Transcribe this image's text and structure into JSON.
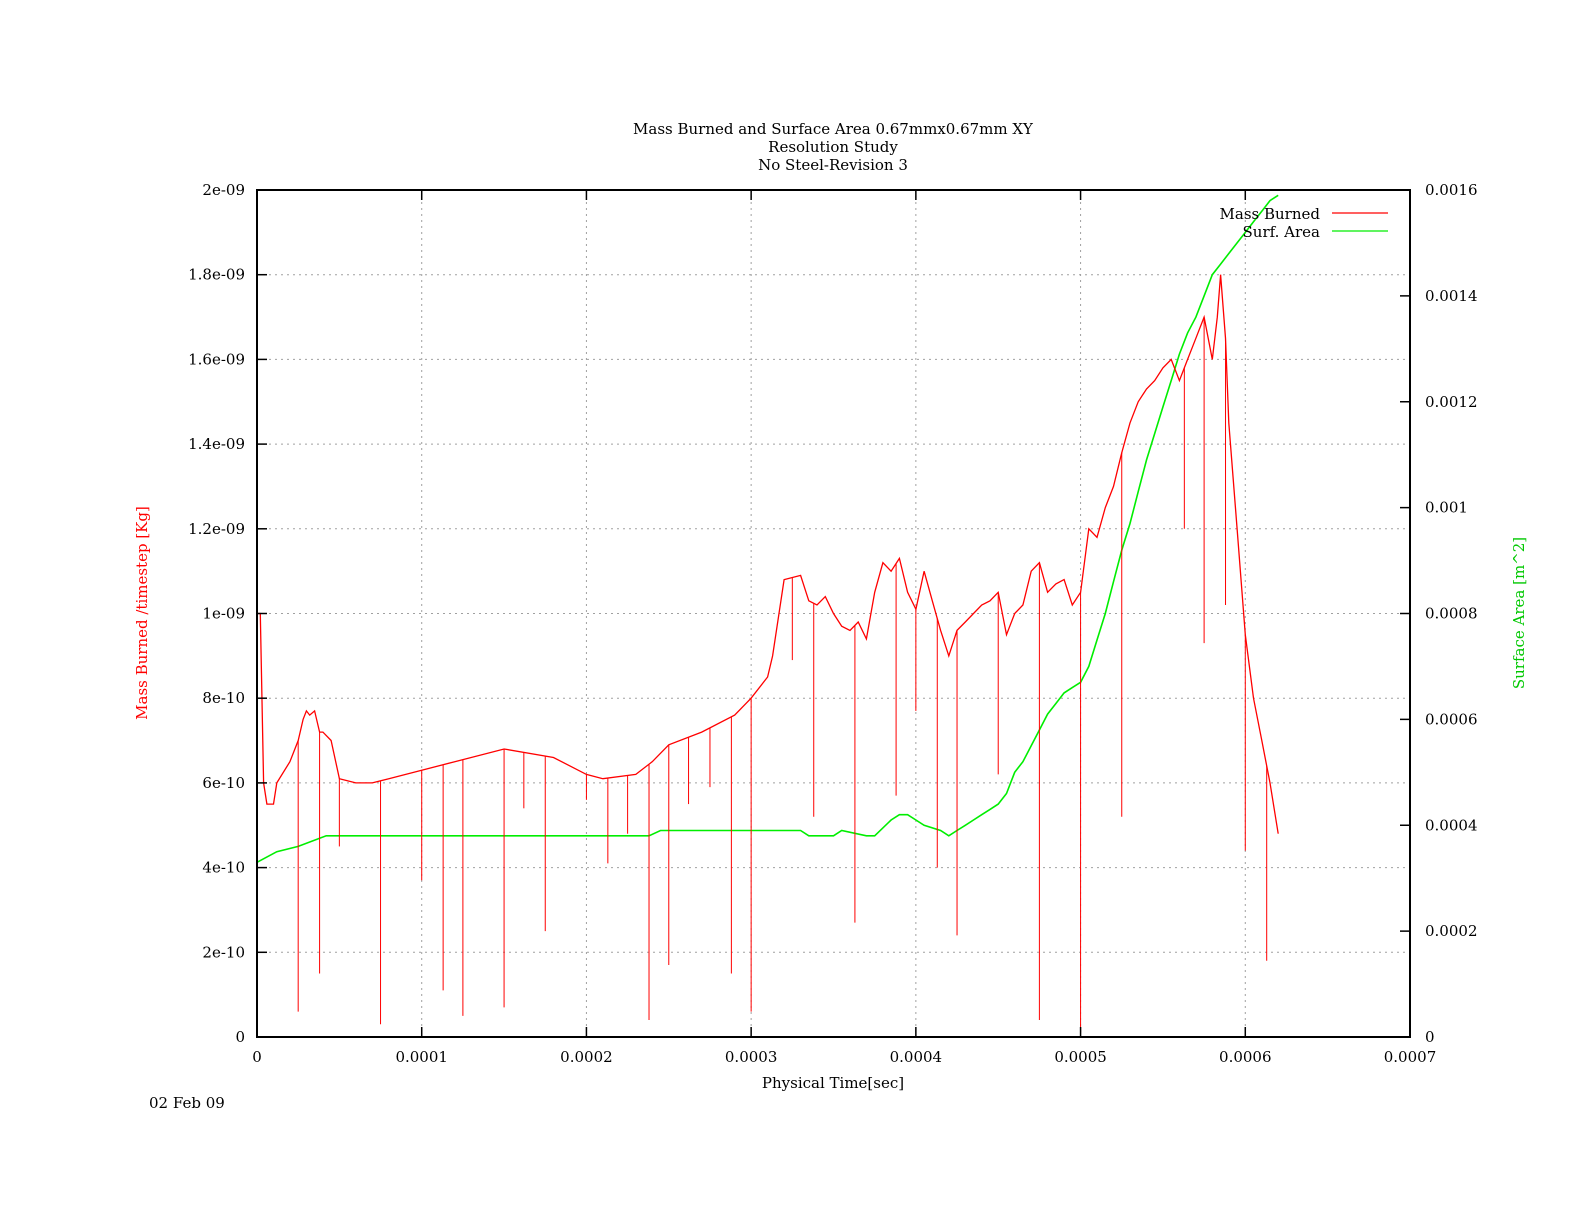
{
  "chart_data": {
    "type": "line",
    "title_lines": [
      "Mass Burned and Surface Area 0.67mmx0.67mm XY",
      "Resolution Study",
      "No Steel-Revision 3"
    ],
    "xlabel": "Physical Time[sec]",
    "ylabel": "Mass Burned /timestep  [Kg]",
    "y2label": "Surface Area [m^2]",
    "xlim": [
      0,
      0.0007
    ],
    "ylim": [
      0,
      2e-09
    ],
    "y2lim": [
      0,
      0.0016
    ],
    "xticks": [
      "0",
      "0.0001",
      "0.0002",
      "0.0003",
      "0.0004",
      "0.0005",
      "0.0006",
      "0.0007"
    ],
    "yticks": [
      "0",
      "2e-10",
      "4e-10",
      "6e-10",
      "8e-10",
      "1e-09",
      "1.2e-09",
      "1.4e-09",
      "1.6e-09",
      "1.8e-09",
      "2e-09"
    ],
    "y2ticks": [
      "0",
      "0.0002",
      "0.0004",
      "0.0006",
      "0.0008",
      "0.001",
      "0.0012",
      "0.0014",
      "0.0016"
    ],
    "grid": true,
    "legend_position": "top-right",
    "footer_date": "02 Feb 09",
    "colors": {
      "mass": "#ff0000",
      "area": "#00ee00",
      "axis": "#000000",
      "grid": "#a0a0a0"
    },
    "series": [
      {
        "name": "Mass Burned",
        "axis": "left",
        "x": [
          0,
          2e-06,
          4e-06,
          6e-06,
          1e-05,
          1.2e-05,
          2e-05,
          2.5e-05,
          2.8e-05,
          3e-05,
          3.2e-05,
          3.5e-05,
          3.8e-05,
          4e-05,
          4.5e-05,
          5e-05,
          6e-05,
          7e-05,
          8e-05,
          0.0001,
          0.00012,
          0.00015,
          0.00018,
          0.0002,
          0.00021,
          0.00023,
          0.00024,
          0.00025,
          0.00027,
          0.00029,
          0.0003,
          0.00031,
          0.000313,
          0.00032,
          0.00033,
          0.000335,
          0.00034,
          0.000345,
          0.00035,
          0.000355,
          0.00036,
          0.000365,
          0.00037,
          0.000375,
          0.00038,
          0.000385,
          0.00039,
          0.000395,
          0.0004,
          0.000405,
          0.00041,
          0.000415,
          0.00042,
          0.000425,
          0.00043,
          0.000435,
          0.00044,
          0.000445,
          0.00045,
          0.000455,
          0.00046,
          0.000465,
          0.00047,
          0.000475,
          0.00048,
          0.000485,
          0.00049,
          0.000495,
          0.0005,
          0.000505,
          0.00051,
          0.000515,
          0.00052,
          0.000525,
          0.00053,
          0.000535,
          0.00054,
          0.000545,
          0.00055,
          0.000555,
          0.00056,
          0.000565,
          0.00057,
          0.000575,
          0.00058,
          0.000583,
          0.000585,
          0.000588,
          0.00059,
          0.000595,
          0.0006,
          0.000605,
          0.00061,
          0.000615,
          0.00062
        ],
        "y": [
          1e-09,
          1e-09,
          6e-10,
          5.5e-10,
          5.5e-10,
          6e-10,
          6.5e-10,
          7e-10,
          7.5e-10,
          7.7e-10,
          7.6e-10,
          7.7e-10,
          7.2e-10,
          7.2e-10,
          7e-10,
          6.1e-10,
          6e-10,
          6e-10,
          6.1e-10,
          6.3e-10,
          6.5e-10,
          6.8e-10,
          6.6e-10,
          6.2e-10,
          6.1e-10,
          6.2e-10,
          6.5e-10,
          6.9e-10,
          7.2e-10,
          7.6e-10,
          8e-10,
          8.5e-10,
          9e-10,
          1.08e-09,
          1.09e-09,
          1.03e-09,
          1.02e-09,
          1.04e-09,
          1e-09,
          9.7e-10,
          9.6e-10,
          9.8e-10,
          9.4e-10,
          1.05e-09,
          1.12e-09,
          1.1e-09,
          1.13e-09,
          1.05e-09,
          1.01e-09,
          1.1e-09,
          1.03e-09,
          9.6e-10,
          9e-10,
          9.6e-10,
          9.8e-10,
          1e-09,
          1.02e-09,
          1.03e-09,
          1.05e-09,
          9.5e-10,
          1e-09,
          1.02e-09,
          1.1e-09,
          1.12e-09,
          1.05e-09,
          1.07e-09,
          1.08e-09,
          1.02e-09,
          1.05e-09,
          1.2e-09,
          1.18e-09,
          1.25e-09,
          1.3e-09,
          1.38e-09,
          1.45e-09,
          1.5e-09,
          1.53e-09,
          1.55e-09,
          1.58e-09,
          1.6e-09,
          1.55e-09,
          1.6e-09,
          1.65e-09,
          1.7e-09,
          1.6e-09,
          1.7e-09,
          1.8e-09,
          1.65e-09,
          1.45e-09,
          1.2e-09,
          9.5e-10,
          8e-10,
          7e-10,
          6e-10,
          4.8e-10
        ],
        "drops": [
          [
            2.5e-05,
            6e-11
          ],
          [
            3.8e-05,
            1.5e-10
          ],
          [
            5e-05,
            4.5e-10
          ],
          [
            7.5e-05,
            3e-11
          ],
          [
            0.0001,
            3.7e-10
          ],
          [
            0.000113,
            1.1e-10
          ],
          [
            0.000125,
            5e-11
          ],
          [
            0.00015,
            7e-11
          ],
          [
            0.000162,
            5.4e-10
          ],
          [
            0.000175,
            2.5e-10
          ],
          [
            0.0002,
            5.6e-10
          ],
          [
            0.000213,
            4.1e-10
          ],
          [
            0.000225,
            4.8e-10
          ],
          [
            0.000238,
            4e-11
          ],
          [
            0.00025,
            1.7e-10
          ],
          [
            0.000262,
            5.5e-10
          ],
          [
            0.000275,
            5.9e-10
          ],
          [
            0.000288,
            1.5e-10
          ],
          [
            0.0003,
            6e-11
          ],
          [
            0.000325,
            8.9e-10
          ],
          [
            0.000338,
            5.2e-10
          ],
          [
            0.000363,
            2.7e-10
          ],
          [
            0.000388,
            5.7e-10
          ],
          [
            0.0004,
            7.7e-10
          ],
          [
            0.000413,
            4e-10
          ],
          [
            0.000425,
            2.4e-10
          ],
          [
            0.00045,
            6.2e-10
          ],
          [
            0.000475,
            4e-11
          ],
          [
            0.0005,
            1e-11
          ],
          [
            0.000525,
            5.2e-10
          ],
          [
            0.000563,
            1.2e-09
          ],
          [
            0.000575,
            9.3e-10
          ],
          [
            0.000588,
            1.02e-09
          ],
          [
            0.0006,
            4.4e-10
          ],
          [
            0.000613,
            1.8e-10
          ]
        ]
      },
      {
        "name": "Surf. Area",
        "axis": "right",
        "x": [
          0,
          1.2e-05,
          2.5e-05,
          4.2e-05,
          6e-05,
          0.0001,
          0.0002,
          0.000238,
          0.000245,
          0.00025,
          0.0003,
          0.00033,
          0.000335,
          0.00035,
          0.000355,
          0.00037,
          0.000375,
          0.000385,
          0.00039,
          0.000395,
          0.0004,
          0.000405,
          0.000415,
          0.00042,
          0.000425,
          0.00043,
          0.000435,
          0.00044,
          0.000445,
          0.00045,
          0.000455,
          0.00046,
          0.000465,
          0.00047,
          0.000475,
          0.00048,
          0.000485,
          0.00049,
          0.000495,
          0.0005,
          0.000505,
          0.00051,
          0.000515,
          0.00052,
          0.000525,
          0.00053,
          0.000535,
          0.00054,
          0.000545,
          0.00055,
          0.000555,
          0.00056,
          0.000565,
          0.00057,
          0.000575,
          0.00058,
          0.000585,
          0.00059,
          0.000595,
          0.0006,
          0.000605,
          0.00061,
          0.000615,
          0.00062
        ],
        "y": [
          0.00033,
          0.00035,
          0.00036,
          0.00038,
          0.00038,
          0.00038,
          0.00038,
          0.00038,
          0.00039,
          0.00039,
          0.00039,
          0.00039,
          0.00038,
          0.00038,
          0.00039,
          0.00038,
          0.00038,
          0.00041,
          0.00042,
          0.00042,
          0.00041,
          0.0004,
          0.00039,
          0.00038,
          0.00039,
          0.0004,
          0.00041,
          0.00042,
          0.00043,
          0.00044,
          0.00046,
          0.0005,
          0.00052,
          0.00055,
          0.00058,
          0.00061,
          0.00063,
          0.00065,
          0.00066,
          0.00067,
          0.0007,
          0.00075,
          0.0008,
          0.00086,
          0.00092,
          0.00097,
          0.00103,
          0.00109,
          0.00114,
          0.00119,
          0.00124,
          0.00129,
          0.00133,
          0.00136,
          0.0014,
          0.00144,
          0.00146,
          0.00148,
          0.0015,
          0.00152,
          0.00154,
          0.00156,
          0.00158,
          0.00159
        ]
      }
    ]
  }
}
